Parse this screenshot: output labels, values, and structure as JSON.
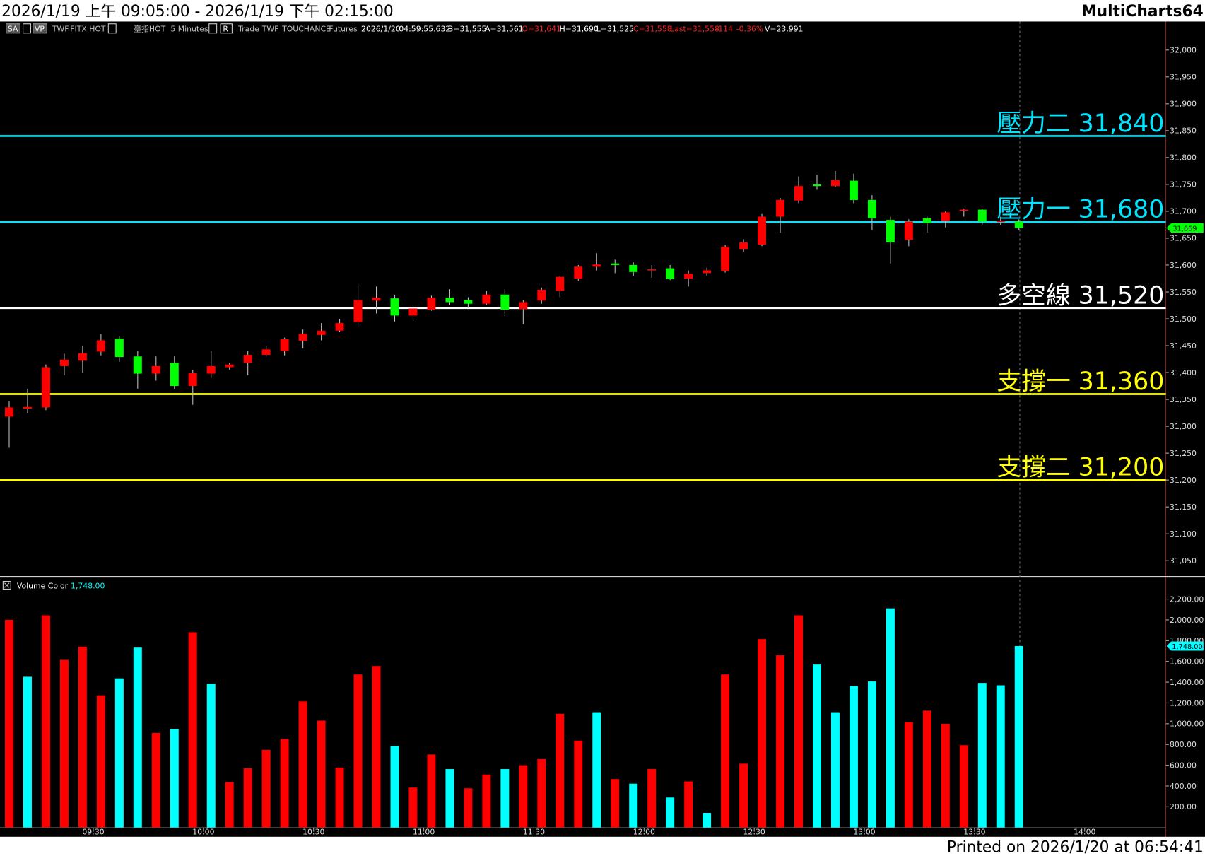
{
  "header": {
    "range": "2026/1/19 上午 09:05:00 - 2026/1/19 下午 02:15:00",
    "app": "MultiCharts64"
  },
  "toolbar": [
    {
      "text": "SA",
      "color": "#ffffff"
    },
    {
      "text": "VP",
      "color": "#ffffff"
    },
    {
      "text": "TWF.FITX HOT",
      "color": "#c0c0c0"
    },
    {
      "text": "臺指HOT",
      "color": "#c0c0c0"
    },
    {
      "text": "5 Minutes",
      "color": "#c0c0c0"
    },
    {
      "text": "R",
      "color": "#ffffff"
    },
    {
      "text": "Trade",
      "color": "#c0c0c0"
    },
    {
      "text": "TWF",
      "color": "#c0c0c0"
    },
    {
      "text": "TOUCHANCE",
      "color": "#c0c0c0"
    },
    {
      "text": "Futures",
      "color": "#c0c0c0"
    },
    {
      "text": "2026/1/20",
      "color": "#ffffff"
    },
    {
      "text": "04:59:55.632",
      "color": "#ffffff"
    },
    {
      "text": "B=31,555",
      "color": "#ffffff"
    },
    {
      "text": "A=31,561",
      "color": "#ffffff"
    },
    {
      "text": "O=31,641",
      "color": "#ff2020"
    },
    {
      "text": "H=31,690",
      "color": "#ffffff"
    },
    {
      "text": "L=31,525",
      "color": "#ffffff"
    },
    {
      "text": "C=31,558",
      "color": "#ff2020"
    },
    {
      "text": "Last=31,558",
      "color": "#ff2020"
    },
    {
      "text": "-114",
      "color": "#ff2020"
    },
    {
      "text": "-0.36%",
      "color": "#ff2020"
    },
    {
      "text": "V=23,991",
      "color": "#ffffff"
    }
  ],
  "footer": "Printed on 2026/1/20 at 06:54:41",
  "chart_data": [
    {
      "type": "candlestick",
      "x": [
        545,
        550,
        555,
        560,
        565,
        570,
        575,
        580,
        585,
        590,
        595,
        600,
        605,
        610,
        615,
        620,
        625,
        630,
        635,
        640,
        645,
        650,
        655,
        660,
        665,
        670,
        675,
        680,
        685,
        690,
        695,
        700,
        705,
        710,
        715,
        720,
        725,
        730,
        735,
        740,
        745,
        750,
        755,
        760,
        765,
        770,
        775,
        780,
        785,
        790,
        795,
        800,
        805,
        810,
        815,
        820
      ],
      "open": [
        31318,
        31333,
        31335,
        31412,
        31422,
        31439,
        31463,
        31430,
        31398,
        31418,
        31375,
        31398,
        31410,
        31418,
        31433,
        31440,
        31459,
        31470,
        31478,
        31494,
        31534,
        31538,
        31506,
        31517,
        31539,
        31535,
        31528,
        31545,
        31518,
        31534,
        31552,
        31575,
        31597,
        31603,
        31600,
        31590,
        31594,
        31575,
        31585,
        31589,
        31630,
        31638,
        31690,
        31720,
        31750,
        31747,
        31757,
        31721,
        31684,
        31647,
        31687,
        31682,
        31701,
        31703,
        31680,
        31681
      ],
      "high": [
        31346,
        31370,
        31415,
        31435,
        31450,
        31472,
        31467,
        31440,
        31430,
        31430,
        31405,
        31440,
        31418,
        31440,
        31450,
        31465,
        31480,
        31492,
        31500,
        31565,
        31560,
        31545,
        31525,
        31543,
        31555,
        31540,
        31552,
        31555,
        31535,
        31558,
        31580,
        31600,
        31622,
        31610,
        31605,
        31600,
        31600,
        31590,
        31595,
        31638,
        31648,
        31695,
        31725,
        31765,
        31768,
        31775,
        31770,
        31730,
        31690,
        31685,
        31690,
        31700,
        31705,
        31705,
        31690,
        31685
      ],
      "low": [
        31260,
        31325,
        31330,
        31395,
        31400,
        31432,
        31420,
        31370,
        31385,
        31370,
        31340,
        31390,
        31405,
        31395,
        31430,
        31432,
        31445,
        31460,
        31475,
        31485,
        31510,
        31495,
        31496,
        31515,
        31525,
        31520,
        31525,
        31505,
        31490,
        31528,
        31540,
        31570,
        31590,
        31585,
        31580,
        31576,
        31572,
        31560,
        31580,
        31586,
        31625,
        31635,
        31660,
        31715,
        31740,
        31745,
        31715,
        31665,
        31603,
        31635,
        31660,
        31670,
        31690,
        31675,
        31675,
        31665
      ],
      "close": [
        31335,
        31336,
        31410,
        31424,
        31436,
        31460,
        31429,
        31398,
        31412,
        31375,
        31399,
        31412,
        31415,
        31433,
        31443,
        31462,
        31472,
        31478,
        31492,
        31535,
        31539,
        31506,
        31519,
        31539,
        31531,
        31528,
        31545,
        31517,
        31531,
        31554,
        31578,
        31597,
        31601,
        31600,
        31587,
        31592,
        31574,
        31584,
        31590,
        31634,
        31642,
        31690,
        31721,
        31747,
        31747,
        31758,
        31721,
        31687,
        31642,
        31681,
        31678,
        31698,
        31703,
        31681,
        31682,
        31669
      ],
      "up_color": "#ff0000",
      "down_color": "#00ff00",
      "xlim": [
        542.5,
        860
      ],
      "ylim": [
        31020,
        32053
      ],
      "yticks": [
        {
          "value": 31050,
          "label": "31,050"
        },
        {
          "value": 31100,
          "label": "31,100"
        },
        {
          "value": 31150,
          "label": "31,150"
        },
        {
          "value": 31200,
          "label": "31,200"
        },
        {
          "value": 31250,
          "label": "31,250"
        },
        {
          "value": 31300,
          "label": "31,300"
        },
        {
          "value": 31350,
          "label": "31,350"
        },
        {
          "value": 31400,
          "label": "31,400"
        },
        {
          "value": 31450,
          "label": "31,450"
        },
        {
          "value": 31500,
          "label": "31,500"
        },
        {
          "value": 31550,
          "label": "31,550"
        },
        {
          "value": 31600,
          "label": "31,600"
        },
        {
          "value": 31650,
          "label": "31,650"
        },
        {
          "value": 31700,
          "label": "31,700"
        },
        {
          "value": 31750,
          "label": "31,750"
        },
        {
          "value": 31800,
          "label": "31,800"
        },
        {
          "value": 31850,
          "label": "31,850"
        },
        {
          "value": 31900,
          "label": "31,900"
        },
        {
          "value": 31950,
          "label": "31,950"
        },
        {
          "value": 32000,
          "label": "32,000"
        }
      ],
      "levels": [
        {
          "name": "壓力二",
          "value": 31840,
          "value_label": "31,840",
          "color": "#00e5ff"
        },
        {
          "name": "壓力一",
          "value": 31680,
          "value_label": "31,680",
          "color": "#00e5ff"
        },
        {
          "name": "多空線",
          "value": 31520,
          "value_label": "31,520",
          "color": "#ffffff"
        },
        {
          "name": "支撐一",
          "value": 31360,
          "value_label": "31,360",
          "color": "#ffff00"
        },
        {
          "name": "支撐二",
          "value": 31200,
          "value_label": "31,200",
          "color": "#ffff00"
        }
      ],
      "last": {
        "value": 31669,
        "label": "31,669",
        "color": "#00ff00"
      }
    },
    {
      "type": "bar",
      "title": "Volume Color",
      "x": [
        545,
        550,
        555,
        560,
        565,
        570,
        575,
        580,
        585,
        590,
        595,
        600,
        605,
        610,
        615,
        620,
        625,
        630,
        635,
        640,
        645,
        650,
        655,
        660,
        665,
        670,
        675,
        680,
        685,
        690,
        695,
        700,
        705,
        710,
        715,
        720,
        725,
        730,
        735,
        740,
        745,
        750,
        755,
        760,
        765,
        770,
        775,
        780,
        785,
        790,
        795,
        800,
        805,
        810,
        815,
        820
      ],
      "values": [
        2000,
        1452,
        2044,
        1615,
        1741,
        1274,
        1437,
        1733,
        911,
        948,
        1881,
        1385,
        437,
        570,
        748,
        852,
        1215,
        1030,
        578,
        1474,
        1556,
        785,
        385,
        704,
        563,
        378,
        511,
        563,
        600,
        659,
        1096,
        837,
        1111,
        467,
        422,
        563,
        289,
        444,
        141,
        1474,
        615,
        1815,
        1659,
        2044,
        1570,
        1111,
        1363,
        1407,
        2111,
        1015,
        1126,
        1000,
        793,
        1393,
        1370,
        1748
      ],
      "colors": [
        "#ff0000",
        "#00ffff",
        "#ff0000",
        "#ff0000",
        "#ff0000",
        "#ff0000",
        "#00ffff",
        "#00ffff",
        "#ff0000",
        "#00ffff",
        "#ff0000",
        "#00ffff",
        "#ff0000",
        "#ff0000",
        "#ff0000",
        "#ff0000",
        "#ff0000",
        "#ff0000",
        "#ff0000",
        "#ff0000",
        "#ff0000",
        "#00ffff",
        "#ff0000",
        "#ff0000",
        "#00ffff",
        "#ff0000",
        "#ff0000",
        "#00ffff",
        "#ff0000",
        "#ff0000",
        "#ff0000",
        "#ff0000",
        "#00ffff",
        "#ff0000",
        "#00ffff",
        "#ff0000",
        "#00ffff",
        "#ff0000",
        "#00ffff",
        "#ff0000",
        "#ff0000",
        "#ff0000",
        "#ff0000",
        "#ff0000",
        "#00ffff",
        "#00ffff",
        "#00ffff",
        "#00ffff",
        "#00ffff",
        "#ff0000",
        "#ff0000",
        "#ff0000",
        "#ff0000",
        "#00ffff",
        "#00ffff",
        "#00ffff"
      ],
      "xlim": [
        542.5,
        860
      ],
      "ylim": [
        0,
        2400
      ],
      "yticks": [
        {
          "value": 200,
          "label": "200.00"
        },
        {
          "value": 400,
          "label": "400.00"
        },
        {
          "value": 600,
          "label": "600.00"
        },
        {
          "value": 800,
          "label": "800.00"
        },
        {
          "value": 1000,
          "label": "1,000.00"
        },
        {
          "value": 1200,
          "label": "1,200.00"
        },
        {
          "value": 1400,
          "label": "1,400.00"
        },
        {
          "value": 1600,
          "label": "1,600.00"
        },
        {
          "value": 1800,
          "label": "1,800.00"
        },
        {
          "value": 2000,
          "label": "2,000.00"
        },
        {
          "value": 2200,
          "label": "2,200.00"
        }
      ],
      "xticks": [
        {
          "value": 570,
          "label": "09:30"
        },
        {
          "value": 600,
          "label": "10:00"
        },
        {
          "value": 630,
          "label": "10:30"
        },
        {
          "value": 660,
          "label": "11:00"
        },
        {
          "value": 690,
          "label": "11:30"
        },
        {
          "value": 720,
          "label": "12:00"
        },
        {
          "value": 750,
          "label": "12:30"
        },
        {
          "value": 780,
          "label": "13:00"
        },
        {
          "value": 810,
          "label": "13:30"
        },
        {
          "value": 840,
          "label": "14:00"
        }
      ],
      "last": {
        "value": 1748,
        "label": "1,748.00",
        "color": "#00ffff"
      }
    }
  ]
}
